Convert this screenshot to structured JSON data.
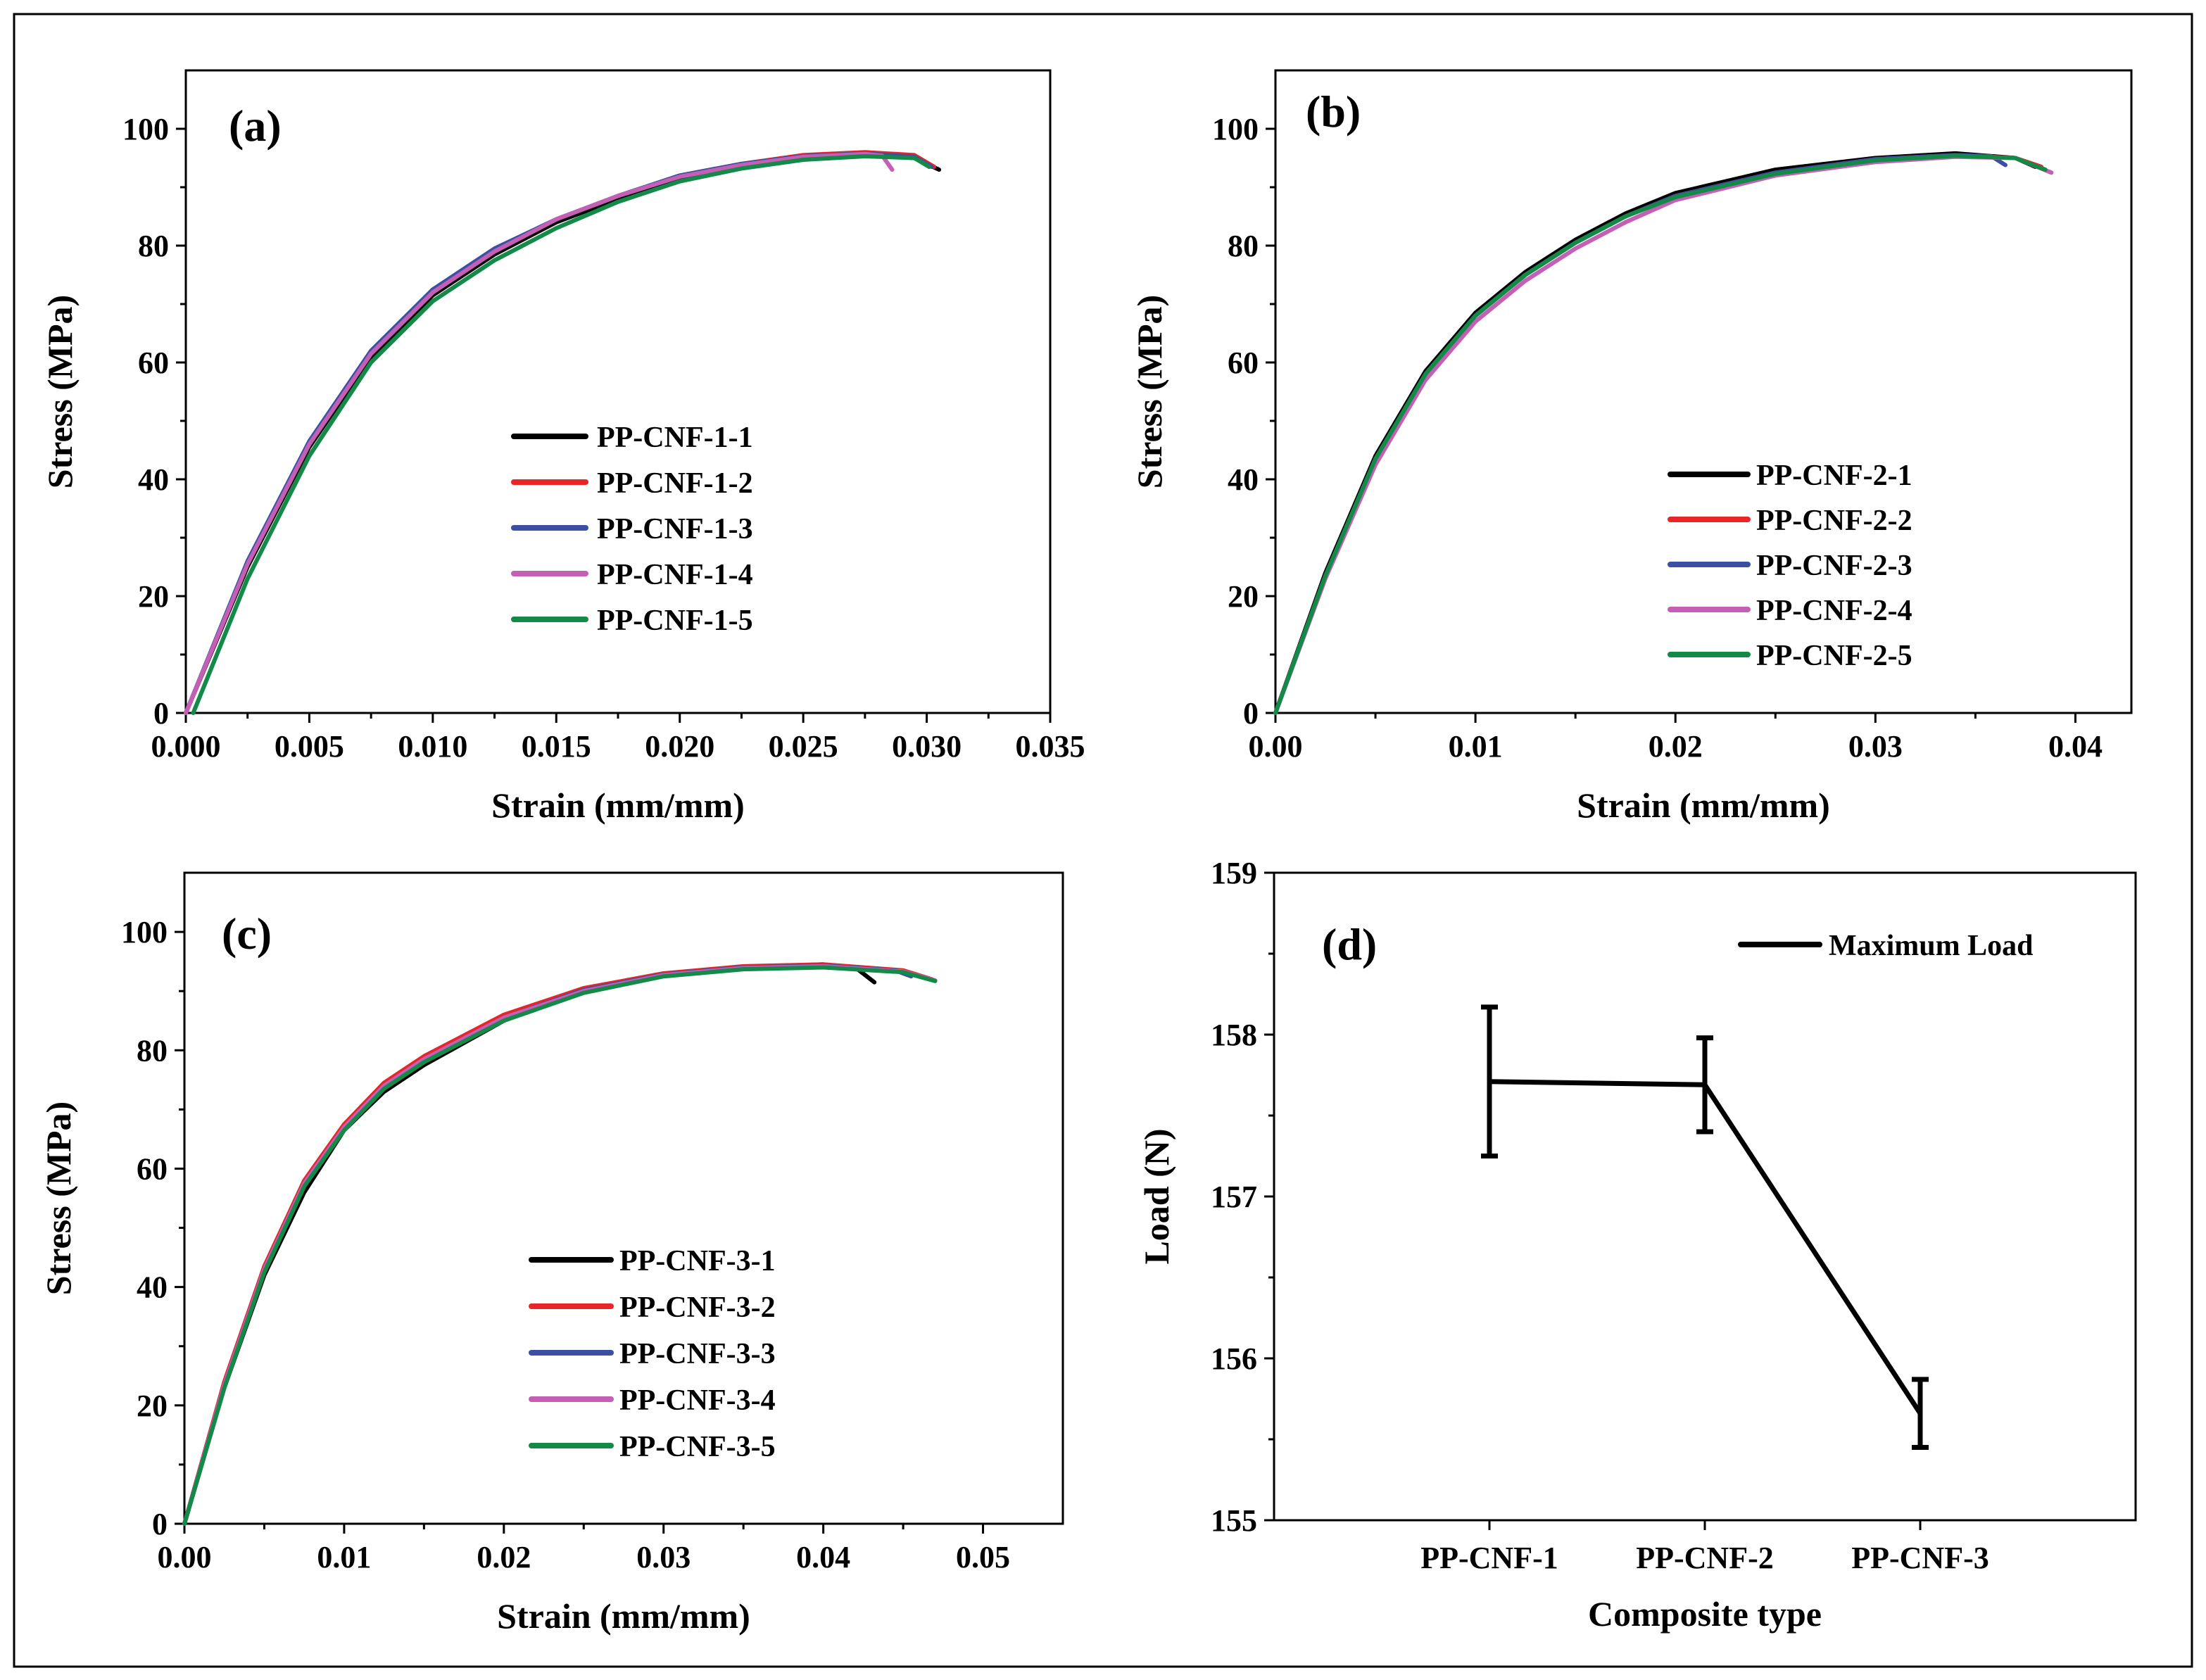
{
  "chart_data": [
    {
      "type": "line",
      "panel_label": "(a)",
      "xlabel": "Strain (mm/mm)",
      "ylabel": "Stress (MPa)",
      "xlim": [
        0,
        0.035
      ],
      "ylim": [
        0,
        110
      ],
      "x_ticks": [
        "0.000",
        "0.005",
        "0.010",
        "0.015",
        "0.020",
        "0.025",
        "0.030",
        "0.035"
      ],
      "y_ticks": [
        "0",
        "20",
        "40",
        "60",
        "80",
        "100"
      ],
      "legend_position": "center-right",
      "series": [
        {
          "name": "PP-CNF-1-1",
          "color": "#000000",
          "x": [
            0,
            0.0025,
            0.005,
            0.0075,
            0.01,
            0.0125,
            0.015,
            0.0175,
            0.02,
            0.0225,
            0.025,
            0.0275,
            0.0295,
            0.0305
          ],
          "y": [
            0,
            25,
            45.5,
            61,
            71.5,
            78.5,
            84,
            88,
            91.5,
            93.5,
            95,
            95.5,
            95,
            93
          ]
        },
        {
          "name": "PP-CNF-1-2",
          "color": "#e8262a",
          "x": [
            0,
            0.0025,
            0.005,
            0.0075,
            0.01,
            0.0125,
            0.015,
            0.0175,
            0.02,
            0.0225,
            0.025,
            0.0275,
            0.0295,
            0.0303
          ],
          "y": [
            0,
            25.5,
            46,
            61.5,
            72,
            79,
            84.5,
            88.5,
            92,
            94,
            95.5,
            96,
            95.5,
            93.5
          ]
        },
        {
          "name": "PP-CNF-1-3",
          "color": "#3b4fa3",
          "x": [
            0,
            0.0025,
            0.005,
            0.0075,
            0.01,
            0.0125,
            0.015,
            0.0175,
            0.02,
            0.0225,
            0.025,
            0.0275,
            0.0295,
            0.0302
          ],
          "y": [
            0,
            26,
            46.5,
            62,
            72.5,
            79.5,
            84.5,
            88.5,
            92,
            94,
            95.3,
            95.8,
            95.2,
            93.5
          ]
        },
        {
          "name": "PP-CNF-1-4",
          "color": "#c55fb5",
          "x": [
            0,
            0.0025,
            0.005,
            0.0075,
            0.01,
            0.0125,
            0.015,
            0.0175,
            0.02,
            0.0225,
            0.025,
            0.0275,
            0.0282,
            0.0286
          ],
          "y": [
            0,
            25.5,
            46,
            61.5,
            72,
            79,
            84.5,
            88.5,
            91.8,
            93.8,
            95.2,
            95.7,
            95.4,
            93
          ]
        },
        {
          "name": "PP-CNF-1-5",
          "color": "#138a47",
          "x": [
            0.0003,
            0.0025,
            0.005,
            0.0075,
            0.01,
            0.0125,
            0.015,
            0.0175,
            0.02,
            0.0225,
            0.025,
            0.0275,
            0.0295,
            0.0301
          ],
          "y": [
            0,
            23,
            44,
            60,
            70.5,
            77.5,
            83,
            87.5,
            91,
            93.2,
            94.7,
            95.3,
            95,
            93.5
          ]
        }
      ]
    },
    {
      "type": "line",
      "panel_label": "(b)",
      "xlabel": "Strain (mm/mm)",
      "ylabel": "Stress (MPa)",
      "xlim": [
        0,
        0.0428
      ],
      "ylim": [
        0,
        110
      ],
      "x_ticks": [
        "0.00",
        "0.01",
        "0.02",
        "0.03",
        "0.04"
      ],
      "y_ticks": [
        "0",
        "20",
        "40",
        "60",
        "80",
        "100"
      ],
      "legend_position": "lower-right",
      "series": [
        {
          "name": "PP-CNF-2-1",
          "color": "#000000",
          "x": [
            0,
            0.0025,
            0.005,
            0.0075,
            0.01,
            0.0125,
            0.015,
            0.0175,
            0.02,
            0.025,
            0.03,
            0.034,
            0.037,
            0.038
          ],
          "y": [
            0,
            24,
            44,
            58.5,
            68.5,
            75.5,
            81,
            85.5,
            89,
            93,
            95,
            95.8,
            95,
            93.5
          ]
        },
        {
          "name": "PP-CNF-2-2",
          "color": "#e8262a",
          "x": [
            0,
            0.0025,
            0.005,
            0.0075,
            0.01,
            0.0125,
            0.015,
            0.0175,
            0.02,
            0.025,
            0.03,
            0.034,
            0.037,
            0.0383
          ],
          "y": [
            0,
            23.5,
            43.5,
            58,
            68,
            75,
            80.5,
            85,
            88.5,
            92.5,
            94.8,
            95.5,
            95,
            93.5
          ]
        },
        {
          "name": "PP-CNF-2-3",
          "color": "#3b4fa3",
          "x": [
            0,
            0.0025,
            0.005,
            0.0075,
            0.01,
            0.0125,
            0.015,
            0.0175,
            0.02,
            0.025,
            0.03,
            0.034,
            0.0358,
            0.0365
          ],
          "y": [
            0,
            23.5,
            43.5,
            58,
            68,
            75,
            80.5,
            85,
            88.5,
            92.5,
            94.8,
            95.5,
            95.3,
            93.8
          ]
        },
        {
          "name": "PP-CNF-2-4",
          "color": "#c55fb5",
          "x": [
            0,
            0.0025,
            0.005,
            0.0075,
            0.01,
            0.0125,
            0.015,
            0.0175,
            0.02,
            0.025,
            0.03,
            0.034,
            0.037,
            0.0388
          ],
          "y": [
            0,
            23,
            42.5,
            57,
            67,
            74,
            79.5,
            84,
            87.8,
            92,
            94.3,
            95.2,
            95,
            92.5
          ]
        },
        {
          "name": "PP-CNF-2-5",
          "color": "#138a47",
          "x": [
            0,
            0.0025,
            0.005,
            0.0075,
            0.01,
            0.0125,
            0.015,
            0.0175,
            0.02,
            0.025,
            0.03,
            0.034,
            0.037,
            0.0385
          ],
          "y": [
            0,
            23.5,
            43.5,
            58,
            68,
            75,
            80.5,
            85,
            88.3,
            92.3,
            94.6,
            95.4,
            95,
            93
          ]
        }
      ]
    },
    {
      "type": "line",
      "panel_label": "(c)",
      "xlabel": "Strain (mm/mm)",
      "ylabel": "Stress (MPa)",
      "xlim": [
        0,
        0.055
      ],
      "ylim": [
        0,
        110
      ],
      "x_ticks": [
        "0.00",
        "0.01",
        "0.02",
        "0.03",
        "0.04",
        "0.05"
      ],
      "y_ticks": [
        "0",
        "20",
        "40",
        "60",
        "80",
        "100"
      ],
      "legend_position": "lower-right",
      "series": [
        {
          "name": "PP-CNF-3-1",
          "color": "#000000",
          "x": [
            0,
            0.0025,
            0.005,
            0.0075,
            0.01,
            0.0125,
            0.015,
            0.02,
            0.025,
            0.03,
            0.035,
            0.04,
            0.042,
            0.0432
          ],
          "y": [
            0,
            23,
            42,
            56,
            66.5,
            73,
            77.5,
            85,
            90,
            92.8,
            94,
            94.5,
            94,
            91.5
          ]
        },
        {
          "name": "PP-CNF-3-2",
          "color": "#e8262a",
          "x": [
            0,
            0.0025,
            0.005,
            0.0075,
            0.01,
            0.0125,
            0.015,
            0.02,
            0.025,
            0.03,
            0.035,
            0.04,
            0.045,
            0.0468
          ],
          "y": [
            0,
            24,
            43.5,
            58,
            67.5,
            74.5,
            79,
            86,
            90.5,
            93,
            94.2,
            94.5,
            93.5,
            92
          ]
        },
        {
          "name": "PP-CNF-3-3",
          "color": "#3b4fa3",
          "x": [
            0,
            0.0025,
            0.005,
            0.0075,
            0.01,
            0.0125,
            0.015,
            0.02,
            0.025,
            0.03,
            0.035,
            0.04,
            0.0445,
            0.0455
          ],
          "y": [
            0,
            23.5,
            43,
            57.5,
            67,
            74,
            78.5,
            85.5,
            90.2,
            92.8,
            94,
            94.3,
            93.5,
            92.5
          ]
        },
        {
          "name": "PP-CNF-3-4",
          "color": "#c55fb5",
          "x": [
            0,
            0.0025,
            0.005,
            0.0075,
            0.01,
            0.0125,
            0.015,
            0.02,
            0.025,
            0.03,
            0.035,
            0.04,
            0.045,
            0.047
          ],
          "y": [
            0,
            23.5,
            43,
            57.5,
            67,
            74,
            78.5,
            85.5,
            90,
            92.7,
            93.9,
            94.2,
            93.3,
            91.8
          ]
        },
        {
          "name": "PP-CNF-3-5",
          "color": "#138a47",
          "x": [
            0,
            0.0025,
            0.005,
            0.0075,
            0.01,
            0.0125,
            0.015,
            0.02,
            0.025,
            0.03,
            0.035,
            0.04,
            0.045,
            0.047
          ],
          "y": [
            0,
            23,
            42.5,
            57,
            66.5,
            73.5,
            78,
            85,
            89.7,
            92.5,
            93.7,
            94,
            93.2,
            91.7
          ]
        }
      ]
    },
    {
      "type": "line",
      "panel_label": "(d)",
      "xlabel": "Composite type",
      "ylabel": "Load (N)",
      "ylim": [
        155,
        159
      ],
      "y_ticks": [
        "155",
        "156",
        "157",
        "158",
        "159"
      ],
      "categories": [
        "PP-CNF-1",
        "PP-CNF-2",
        "PP-CNF-3"
      ],
      "legend_position": "top-right",
      "series": [
        {
          "name": "Maximum Load",
          "color": "#000000",
          "values": [
            157.71,
            157.69,
            155.66
          ],
          "error": [
            0.46,
            0.29,
            0.21
          ]
        }
      ]
    }
  ]
}
